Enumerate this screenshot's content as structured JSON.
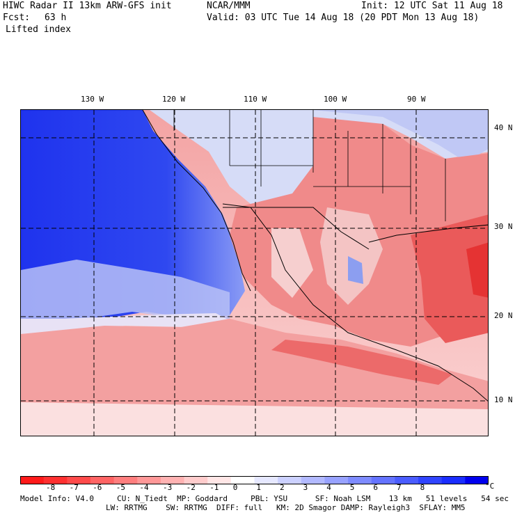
{
  "header": {
    "title_left": "HIWC Radar II 13km ARW-GFS init",
    "org": "NCAR/MMM",
    "init": "Init: 12 UTC Sat 11 Aug 18",
    "fcst_label": "Fcst:",
    "fcst_value": "63 h",
    "valid": "Valid: 03 UTC Tue 14 Aug 18 (20 PDT Mon 13 Aug 18)",
    "field": "Lifted index"
  },
  "map": {
    "lon_labels": [
      "130 W",
      "120 W",
      "110 W",
      "100 W",
      "90 W"
    ],
    "lat_labels": [
      "40 N",
      "30 N",
      "20 N",
      "10 N"
    ],
    "colors": {
      "ocean_stable": "#1f33ee",
      "ocean_mid": "#6f86f2",
      "land_unstable": "#f08a8a",
      "tropical": "#f6a9a9",
      "strong": "#ee4a4a"
    }
  },
  "colorbar": {
    "ticks": [
      "-8",
      "-7",
      "-6",
      "-5",
      "-4",
      "-3",
      "-2",
      "-1",
      "0",
      "1",
      "2",
      "3",
      "4",
      "5",
      "6",
      "7",
      "8"
    ],
    "unit": "°C",
    "colors": [
      "#ff1a1a",
      "#ff3030",
      "#ff4a4a",
      "#ff6464",
      "#ff7e7e",
      "#ff9898",
      "#ffb2b2",
      "#ffcccc",
      "#ffe6e6",
      "#ffffff",
      "#e6e8ff",
      "#ccd1ff",
      "#b2b9ff",
      "#98a2ff",
      "#7e8bff",
      "#6473ff",
      "#4a5cff",
      "#3044ff",
      "#1a2dff",
      "#0000ee"
    ]
  },
  "footer": {
    "line1": "Model Info: V4.0     CU: N_Tiedt  MP: Goddard     PBL: YSU      SF: Noah LSM    13 km   51 levels   54 sec",
    "line2": "LW: RRTMG    SW: RRTMG  DIFF: full   KM: 2D Smagor DAMP: Rayleigh3  SFLAY: MM5"
  }
}
